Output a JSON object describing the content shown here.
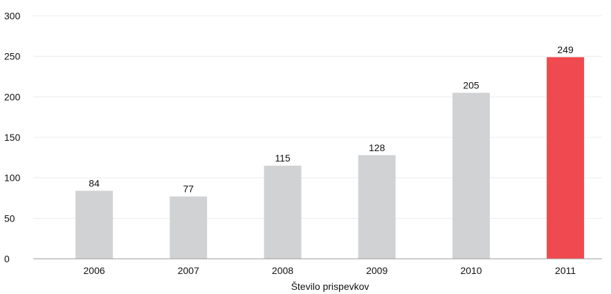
{
  "chart_data": {
    "type": "bar",
    "categories": [
      "2006",
      "2007",
      "2008",
      "2009",
      "2010",
      "2011"
    ],
    "values": [
      84,
      77,
      115,
      128,
      205,
      249
    ],
    "xlabel": "Število prispevkov",
    "ylabel": "",
    "ylim": [
      0,
      300
    ],
    "yticks": [
      0,
      50,
      100,
      150,
      200,
      250,
      300
    ],
    "grid": true,
    "bar_color": "#d1d2d4",
    "highlight_color": "#ef4a4f",
    "highlight_index": 5
  }
}
